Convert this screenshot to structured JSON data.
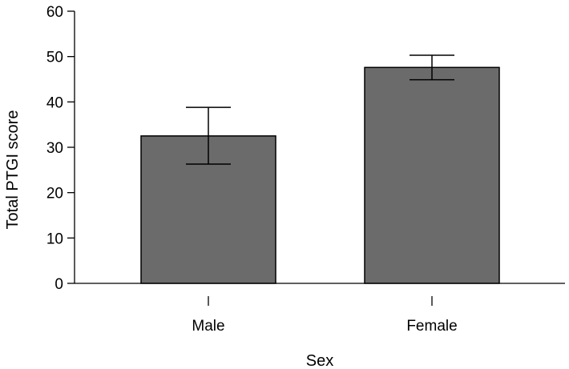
{
  "chart_data": {
    "type": "bar",
    "title": "",
    "xlabel": "Sex",
    "ylabel": "Total PTGI score",
    "ylim": [
      0,
      60
    ],
    "yticks": [
      0,
      10,
      20,
      30,
      40,
      50,
      60
    ],
    "categories": [
      "Male",
      "Female"
    ],
    "series": [
      {
        "values": [
          32.5,
          47.6
        ],
        "error_low": [
          26.3,
          44.9
        ],
        "error_high": [
          38.8,
          50.3
        ]
      }
    ],
    "bar_color": "#6b6b6b",
    "grid": false,
    "legend": "none"
  }
}
